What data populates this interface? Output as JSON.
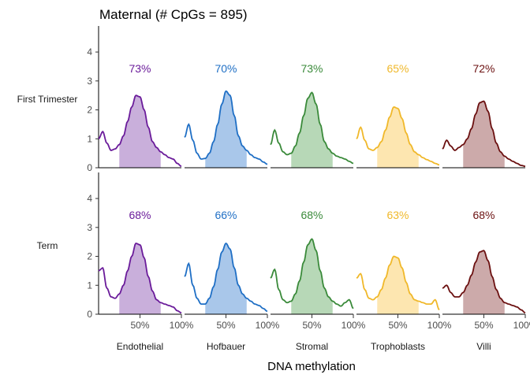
{
  "title": "Maternal (# CpGs = 895)",
  "chart_data": {
    "type": "area",
    "title": "Maternal (# CpGs = 895)",
    "xlabel": "DNA methylation",
    "ylabel": "",
    "xlim": [
      0,
      1
    ],
    "ylim": [
      0,
      4.9
    ],
    "y_ticks": [
      "0",
      "1",
      "2",
      "3",
      "4"
    ],
    "x_ticks": [
      "50%",
      "100%"
    ],
    "x_tick_values": [
      0.5,
      1.0
    ],
    "rows": [
      "First Trimester",
      "Term"
    ],
    "columns": [
      "Endothelial",
      "Hofbauer",
      "Stromal",
      "Trophoblasts",
      "Villi"
    ],
    "colors": {
      "Endothelial": {
        "line": "#6a1b9a",
        "fill": "#c9afdb"
      },
      "Hofbauer": {
        "line": "#1f6fc5",
        "fill": "#a9c7ea"
      },
      "Stromal": {
        "line": "#3a8a3a",
        "fill": "#b7d8b7"
      },
      "Trophoblasts": {
        "line": "#f0b82a",
        "fill": "#fde6b0"
      },
      "Villi": {
        "line": "#6b1010",
        "fill": "#ccaaaa"
      }
    },
    "shaded_interval": [
      0.25,
      0.75
    ],
    "x": [
      0.0,
      0.05,
      0.1,
      0.15,
      0.2,
      0.25,
      0.3,
      0.35,
      0.4,
      0.45,
      0.5,
      0.55,
      0.6,
      0.65,
      0.7,
      0.75,
      0.8,
      0.85,
      0.9,
      0.95,
      1.0
    ],
    "panels": [
      {
        "row": "First Trimester",
        "cell": "Endothelial",
        "label": "73%",
        "density": [
          1.0,
          1.25,
          0.85,
          0.6,
          0.65,
          0.8,
          1.1,
          1.6,
          2.1,
          2.5,
          2.45,
          2.0,
          1.4,
          0.9,
          0.7,
          0.55,
          0.45,
          0.35,
          0.3,
          0.15,
          0.05
        ]
      },
      {
        "row": "First Trimester",
        "cell": "Hofbauer",
        "label": "70%",
        "density": [
          1.05,
          1.5,
          0.95,
          0.5,
          0.3,
          0.32,
          0.5,
          0.9,
          1.5,
          2.2,
          2.65,
          2.5,
          1.8,
          1.1,
          0.75,
          0.6,
          0.45,
          0.35,
          0.3,
          0.2,
          0.12
        ]
      },
      {
        "row": "First Trimester",
        "cell": "Stromal",
        "label": "73%",
        "density": [
          0.8,
          1.3,
          0.85,
          0.55,
          0.45,
          0.5,
          0.75,
          1.2,
          1.8,
          2.4,
          2.6,
          2.2,
          1.5,
          0.9,
          0.65,
          0.5,
          0.4,
          0.35,
          0.3,
          0.22,
          0.15
        ]
      },
      {
        "row": "First Trimester",
        "cell": "Trophoblasts",
        "label": "65%",
        "density": [
          1.0,
          1.4,
          0.95,
          0.65,
          0.6,
          0.7,
          0.9,
          1.3,
          1.75,
          2.1,
          2.05,
          1.7,
          1.2,
          0.8,
          0.55,
          0.45,
          0.35,
          0.28,
          0.22,
          0.15,
          0.1
        ]
      },
      {
        "row": "First Trimester",
        "cell": "Villi",
        "label": "72%",
        "density": [
          0.65,
          0.95,
          0.75,
          0.6,
          0.7,
          0.8,
          1.0,
          1.35,
          1.85,
          2.25,
          2.3,
          1.95,
          1.35,
          0.85,
          0.55,
          0.4,
          0.3,
          0.22,
          0.15,
          0.08,
          0.05
        ]
      },
      {
        "row": "Term",
        "cell": "Endothelial",
        "label": "68%",
        "density": [
          1.5,
          1.6,
          0.9,
          0.6,
          0.55,
          0.7,
          1.0,
          1.5,
          2.0,
          2.45,
          2.4,
          1.95,
          1.3,
          0.8,
          0.5,
          0.4,
          0.35,
          0.3,
          0.25,
          0.12,
          0.05
        ]
      },
      {
        "row": "Term",
        "cell": "Hofbauer",
        "label": "66%",
        "density": [
          1.3,
          1.75,
          1.0,
          0.55,
          0.35,
          0.35,
          0.55,
          0.95,
          1.55,
          2.15,
          2.45,
          2.25,
          1.6,
          1.0,
          0.7,
          0.55,
          0.45,
          0.35,
          0.3,
          0.2,
          0.1
        ]
      },
      {
        "row": "Term",
        "cell": "Stromal",
        "label": "68%",
        "density": [
          1.25,
          1.55,
          0.85,
          0.5,
          0.4,
          0.45,
          0.7,
          1.15,
          1.8,
          2.4,
          2.6,
          2.2,
          1.5,
          0.9,
          0.6,
          0.45,
          0.35,
          0.28,
          0.4,
          0.5,
          0.2
        ]
      },
      {
        "row": "Term",
        "cell": "Trophoblasts",
        "label": "63%",
        "density": [
          1.25,
          1.4,
          0.85,
          0.55,
          0.5,
          0.6,
          0.85,
          1.25,
          1.7,
          2.0,
          1.95,
          1.6,
          1.1,
          0.7,
          0.5,
          0.45,
          0.4,
          0.35,
          0.35,
          0.5,
          0.15
        ]
      },
      {
        "row": "Term",
        "cell": "Villi",
        "label": "68%",
        "density": [
          0.9,
          1.0,
          0.75,
          0.6,
          0.6,
          0.75,
          1.0,
          1.35,
          1.8,
          2.15,
          2.2,
          1.85,
          1.3,
          0.85,
          0.55,
          0.4,
          0.35,
          0.3,
          0.25,
          0.15,
          0.05
        ]
      }
    ]
  }
}
